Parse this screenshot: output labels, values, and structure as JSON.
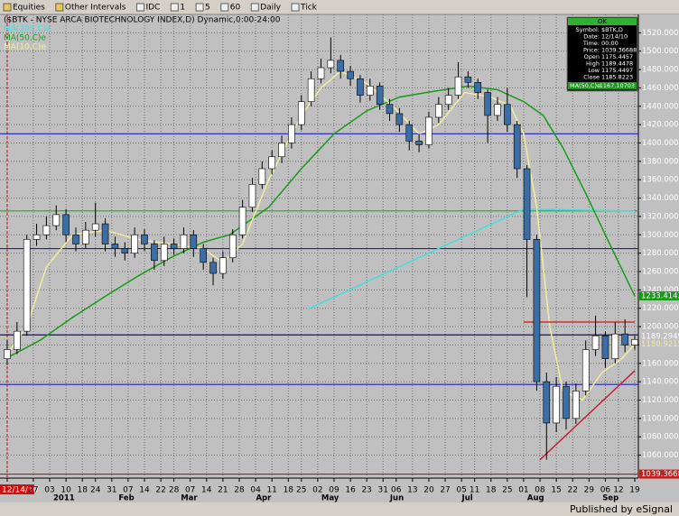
{
  "toolbar": {
    "items": [
      "Equities",
      "Other Intervals",
      "IDC",
      "1",
      "5",
      "60",
      "Daily",
      "Tick"
    ]
  },
  "chart_data": {
    "type": "candlestick",
    "title": "($BTK - NYSE ARCA BIOTECHNOLOGY INDEX,D) Dynamic,0:00-24:00",
    "x": [
      0,
      3,
      6,
      9,
      12,
      15,
      18,
      21,
      24,
      27,
      30,
      33,
      36,
      39,
      42,
      45,
      48,
      51,
      54,
      57,
      60,
      63,
      66,
      69,
      72,
      75,
      78,
      81,
      84,
      87,
      90,
      93,
      96,
      99,
      102,
      105,
      108,
      111,
      114,
      117,
      120,
      123,
      126,
      129,
      132,
      135,
      138,
      141,
      144,
      147,
      150,
      153,
      156,
      159,
      162,
      165,
      168,
      171,
      174,
      177,
      180,
      183,
      186,
      189,
      192
    ],
    "open": [
      1165,
      1175,
      1195,
      1295,
      1300,
      1310,
      1322,
      1300,
      1290,
      1305,
      1312,
      1290,
      1285,
      1280,
      1300,
      1290,
      1272,
      1290,
      1285,
      1300,
      1285,
      1270,
      1258,
      1275,
      1300,
      1330,
      1355,
      1372,
      1385,
      1400,
      1420,
      1445,
      1470,
      1482,
      1490,
      1478,
      1470,
      1452,
      1462,
      1442,
      1432,
      1420,
      1402,
      1398,
      1428,
      1442,
      1452,
      1472,
      1466,
      1455,
      1430,
      1442,
      1420,
      1372,
      1295,
      1140,
      1095,
      1135,
      1100,
      1130,
      1175,
      1190,
      1165,
      1192,
      1180
    ],
    "high": [
      1185,
      1205,
      1300,
      1312,
      1320,
      1332,
      1328,
      1308,
      1314,
      1335,
      1318,
      1298,
      1292,
      1308,
      1306,
      1294,
      1298,
      1296,
      1308,
      1305,
      1290,
      1275,
      1282,
      1306,
      1338,
      1362,
      1380,
      1392,
      1408,
      1428,
      1452,
      1478,
      1492,
      1515,
      1496,
      1484,
      1474,
      1470,
      1466,
      1448,
      1438,
      1424,
      1410,
      1434,
      1450,
      1460,
      1488,
      1478,
      1470,
      1458,
      1450,
      1460,
      1424,
      1376,
      1300,
      1150,
      1145,
      1140,
      1138,
      1185,
      1212,
      1195,
      1205,
      1208,
      1190
    ],
    "low": [
      1158,
      1170,
      1190,
      1288,
      1295,
      1305,
      1292,
      1282,
      1285,
      1298,
      1282,
      1276,
      1272,
      1275,
      1282,
      1262,
      1266,
      1278,
      1280,
      1276,
      1262,
      1245,
      1252,
      1270,
      1296,
      1325,
      1350,
      1366,
      1378,
      1394,
      1414,
      1440,
      1465,
      1476,
      1470,
      1462,
      1444,
      1446,
      1436,
      1424,
      1412,
      1392,
      1390,
      1394,
      1422,
      1436,
      1448,
      1460,
      1448,
      1400,
      1424,
      1412,
      1362,
      1232,
      1130,
      1055,
      1085,
      1088,
      1094,
      1125,
      1168,
      1155,
      1160,
      1172,
      1175
    ],
    "close": [
      1175,
      1195,
      1295,
      1300,
      1310,
      1322,
      1300,
      1290,
      1305,
      1312,
      1290,
      1285,
      1280,
      1300,
      1290,
      1272,
      1290,
      1285,
      1300,
      1285,
      1270,
      1258,
      1275,
      1300,
      1330,
      1355,
      1372,
      1385,
      1400,
      1420,
      1445,
      1470,
      1482,
      1490,
      1478,
      1470,
      1452,
      1462,
      1442,
      1432,
      1420,
      1402,
      1398,
      1428,
      1442,
      1452,
      1472,
      1466,
      1455,
      1430,
      1442,
      1420,
      1372,
      1295,
      1140,
      1095,
      1135,
      1100,
      1130,
      1175,
      1190,
      1165,
      1192,
      1180,
      1186
    ],
    "up_color": "#ffffff",
    "down_color": "#3a6ea5",
    "xlim": [
      -2.2,
      193.1
    ],
    "xticks": [
      {
        "value": 0,
        "label": "12/14/10"
      },
      {
        "value": 8,
        "label": "27"
      },
      {
        "value": 13,
        "label": "03"
      },
      {
        "value": 18,
        "label": "10"
      },
      {
        "value": 23,
        "label": "18"
      },
      {
        "value": 27,
        "label": "24"
      },
      {
        "value": 32,
        "label": "31"
      },
      {
        "value": 37,
        "label": "07"
      },
      {
        "value": 42,
        "label": "14"
      },
      {
        "value": 47,
        "label": "22"
      },
      {
        "value": 51,
        "label": "28"
      },
      {
        "value": 56,
        "label": "07"
      },
      {
        "value": 61,
        "label": "14"
      },
      {
        "value": 66,
        "label": "21"
      },
      {
        "value": 71,
        "label": "28"
      },
      {
        "value": 76,
        "label": "04"
      },
      {
        "value": 81,
        "label": "11"
      },
      {
        "value": 86,
        "label": "18"
      },
      {
        "value": 90,
        "label": "25"
      },
      {
        "value": 95,
        "label": "02"
      },
      {
        "value": 100,
        "label": "09"
      },
      {
        "value": 105,
        "label": "16"
      },
      {
        "value": 110,
        "label": "23"
      },
      {
        "value": 115,
        "label": "31"
      },
      {
        "value": 119,
        "label": "06"
      },
      {
        "value": 124,
        "label": "13"
      },
      {
        "value": 129,
        "label": "20"
      },
      {
        "value": 134,
        "label": "27"
      },
      {
        "value": 139,
        "label": "05"
      },
      {
        "value": 143,
        "label": "11"
      },
      {
        "value": 148,
        "label": "18"
      },
      {
        "value": 153,
        "label": "25"
      },
      {
        "value": 158,
        "label": "01"
      },
      {
        "value": 163,
        "label": "08"
      },
      {
        "value": 168,
        "label": "15"
      },
      {
        "value": 173,
        "label": "22"
      },
      {
        "value": 178,
        "label": "29"
      },
      {
        "value": 183,
        "label": "06"
      },
      {
        "value": 187,
        "label": "12"
      },
      {
        "value": 192,
        "label": "19"
      }
    ],
    "month_labels": [
      {
        "value": 13,
        "label": "2011"
      },
      {
        "value": 33,
        "label": "Feb"
      },
      {
        "value": 52,
        "label": "Mar"
      },
      {
        "value": 75,
        "label": "Apr"
      },
      {
        "value": 95,
        "label": "May"
      },
      {
        "value": 116,
        "label": "Jun"
      },
      {
        "value": 138,
        "label": "Jul"
      },
      {
        "value": 158,
        "label": "Aug"
      },
      {
        "value": 181,
        "label": "Sep"
      }
    ],
    "ylim": [
      1035,
      1540
    ],
    "yticks": [
      {
        "value": 1060,
        "label": "1060.0000"
      },
      {
        "value": 1080,
        "label": "1080.0000"
      },
      {
        "value": 1100,
        "label": "1100.0000"
      },
      {
        "value": 1120,
        "label": "1120.0000"
      },
      {
        "value": 1140,
        "label": "1140.0000"
      },
      {
        "value": 1160,
        "label": "1160.0000"
      },
      {
        "value": 1180,
        "label": "1180.0000"
      },
      {
        "value": 1200,
        "label": "1200.0000"
      },
      {
        "value": 1220,
        "label": "1220.0000"
      },
      {
        "value": 1240,
        "label": "1240.0000"
      },
      {
        "value": 1260,
        "label": "1260.0000"
      },
      {
        "value": 1280,
        "label": "1280.0000"
      },
      {
        "value": 1300,
        "label": "1300.0000"
      },
      {
        "value": 1320,
        "label": "1320.0000"
      },
      {
        "value": 1340,
        "label": "1340.0000"
      },
      {
        "value": 1360,
        "label": "1360.0000"
      },
      {
        "value": 1380,
        "label": "1380.0000"
      },
      {
        "value": 1400,
        "label": "1400.0000"
      },
      {
        "value": 1420,
        "label": "1420.0000"
      },
      {
        "value": 1440,
        "label": "1440.0000"
      },
      {
        "value": 1460,
        "label": "1460.0000"
      },
      {
        "value": 1480,
        "label": "1480.0000"
      },
      {
        "value": 1500,
        "label": "1500.0000"
      },
      {
        "value": 1520,
        "label": "1520.0000"
      }
    ],
    "grid": true,
    "cursor": {
      "x": 0,
      "color": "#d01010"
    },
    "series": [
      {
        "name": "MA(200,C)e",
        "color": "#40e0e0",
        "x": [
          92,
          158,
          192
        ],
        "values": [
          1219,
          1328,
          1326
        ]
      },
      {
        "name": "MA(50,C)e",
        "color": "#1a9a1a",
        "x": [
          0,
          10,
          20,
          30,
          40,
          50,
          60,
          68,
          80,
          90,
          100,
          110,
          120,
          130,
          141,
          150,
          158,
          164,
          170,
          177,
          185,
          192
        ],
        "values": [
          1166,
          1185,
          1210,
          1233,
          1255,
          1275,
          1292,
          1300,
          1330,
          1372,
          1410,
          1435,
          1450,
          1456,
          1462,
          1458,
          1445,
          1430,
          1395,
          1345,
          1285,
          1233.41436
        ]
      },
      {
        "name": "MA(10,C)e",
        "color": "#f2eca0",
        "x": [
          0,
          6,
          12,
          20,
          30,
          40,
          50,
          60,
          66,
          72,
          80,
          90,
          96,
          102,
          110,
          118,
          126,
          132,
          140,
          148,
          154,
          158,
          162,
          166,
          170,
          176,
          182,
          188,
          192
        ],
        "values": [
          1170,
          1200,
          1265,
          1300,
          1305,
          1295,
          1290,
          1285,
          1270,
          1290,
          1360,
          1430,
          1460,
          1478,
          1465,
          1440,
          1410,
          1420,
          1455,
          1450,
          1440,
          1410,
          1330,
          1200,
          1130,
          1120,
          1150,
          1165,
          1180.92152
        ]
      }
    ],
    "levels": [
      {
        "color": "#2020c0",
        "value": 1410
      },
      {
        "color": "#2020c0",
        "value": 1285
      },
      {
        "color": "#30a030",
        "value": 1326
      },
      {
        "color": "#101080",
        "value": 1191
      },
      {
        "color": "#2020c0",
        "value": 1137
      },
      {
        "color": "#b02020",
        "value": 1039.36688
      }
    ],
    "trendlines": [
      {
        "color": "#c02040",
        "x": [
          163,
          192
        ],
        "values": [
          1055,
          1152
        ]
      },
      {
        "color": "#d03030",
        "x": [
          158,
          192
        ],
        "values": [
          1205,
          1205
        ]
      }
    ],
    "value_labels": [
      {
        "value": 1233.41436,
        "label": "1233.41436",
        "color": "#1a9a1a",
        "text_color": "#ffffff"
      },
      {
        "value": 1189.2949,
        "label": "1189.2949",
        "color": "#c0c0c0",
        "text_color": "#ffffff"
      },
      {
        "value": 1180.92152,
        "label": "1180.92152",
        "color": "#c0c0c0",
        "text_color": "#f2eca0"
      },
      {
        "value": 1039.36688,
        "label": "1039.36688",
        "color": "#c02020",
        "text_color": "#ffffff"
      }
    ]
  },
  "info_box": {
    "header": "OK",
    "rows": [
      [
        "Symbol:",
        "$BTK,D"
      ],
      [
        "Date:",
        "12/14/10"
      ],
      [
        "Time:",
        "00:00"
      ],
      [
        "Price:",
        "1039.36688"
      ],
      [
        "Open",
        "1175.4457"
      ],
      [
        "High",
        "1189.4478"
      ],
      [
        "Low",
        "1175.4497"
      ],
      [
        "Close",
        "1185.8223"
      ]
    ],
    "ma_row": [
      "MA(50,C)e",
      "1167.10703"
    ]
  },
  "footer": "Published by eSignal"
}
